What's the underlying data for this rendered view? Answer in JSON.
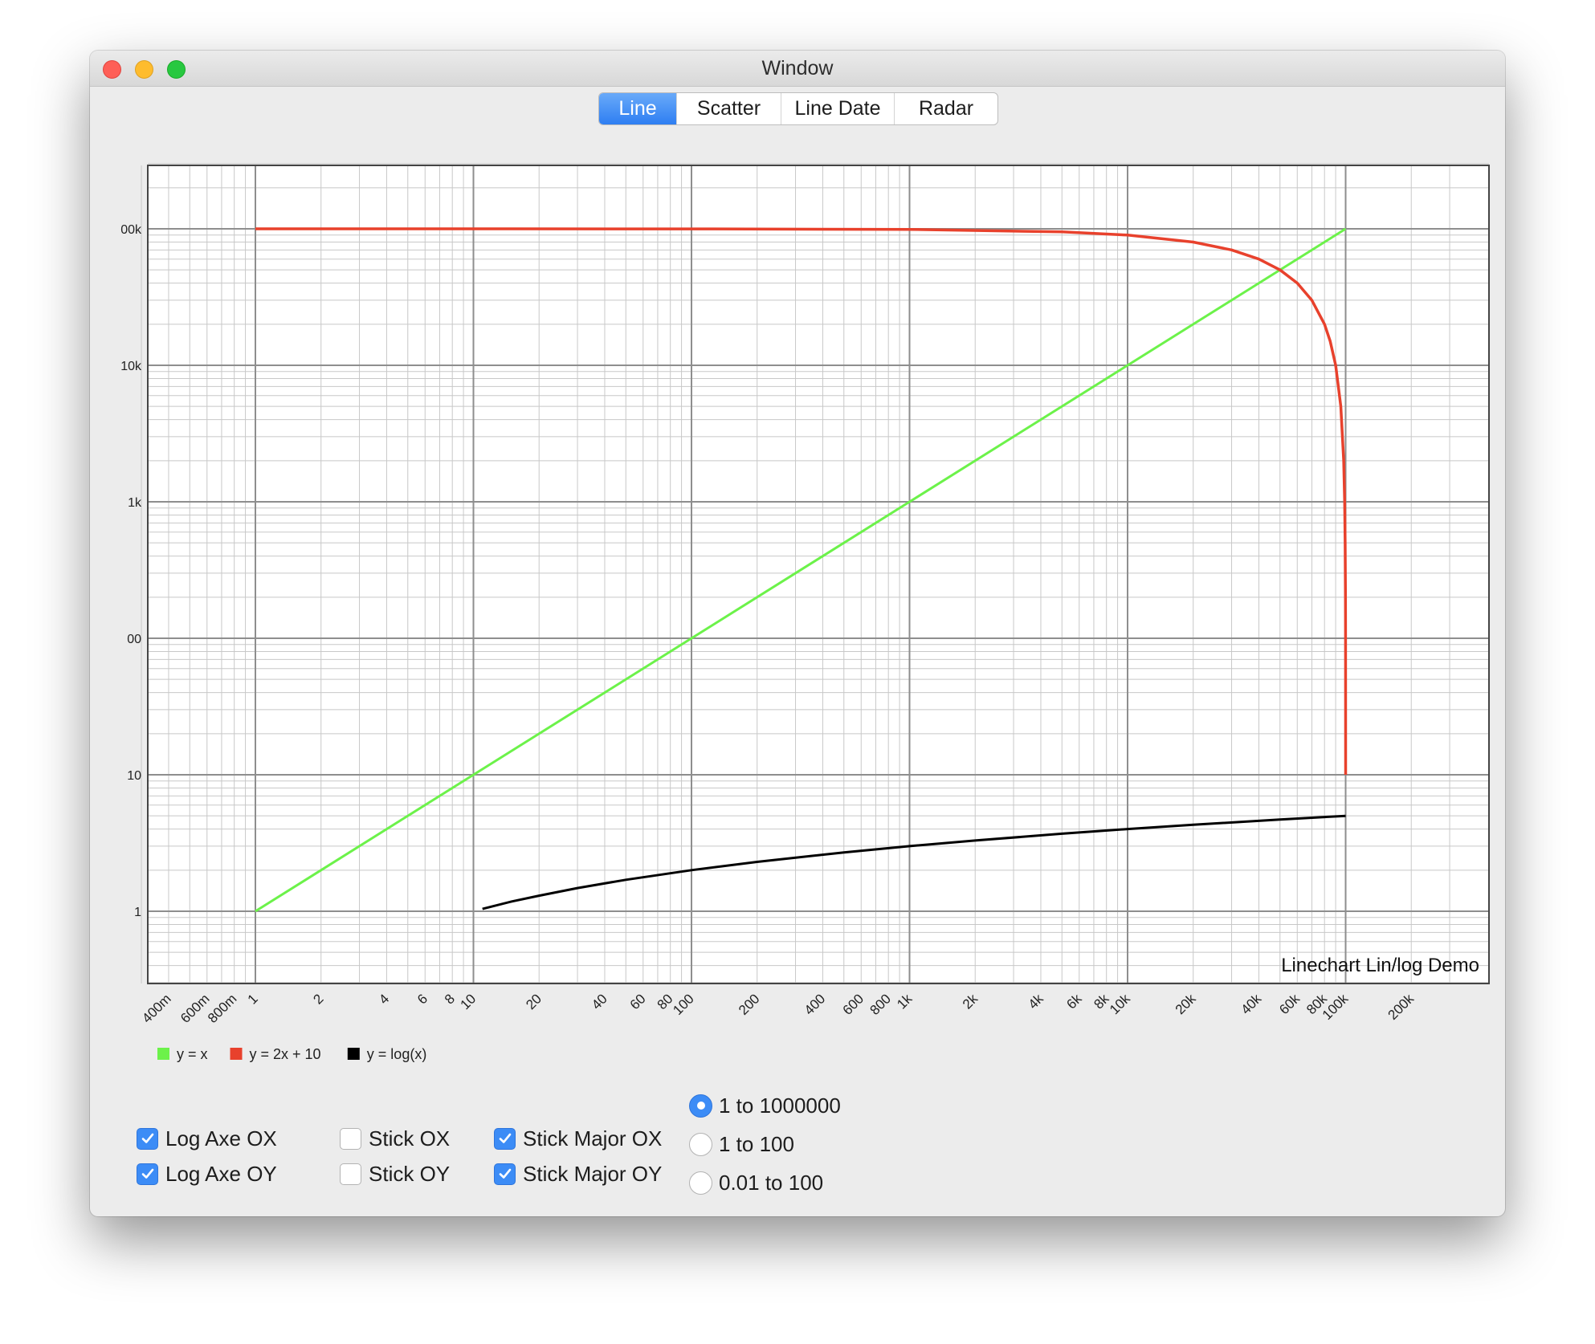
{
  "window": {
    "title": "Window"
  },
  "tabs": [
    {
      "label": "Line",
      "selected": true
    },
    {
      "label": "Scatter",
      "selected": false
    },
    {
      "label": "Line Date",
      "selected": false
    },
    {
      "label": "Radar",
      "selected": false
    }
  ],
  "chart_data": {
    "type": "line",
    "annotation": "Linechart Lin/log Demo",
    "x_scale": "log",
    "y_scale": "log",
    "xlim": [
      0.3,
      300000
    ],
    "ylim": [
      0.3,
      300000
    ],
    "grid": true,
    "legend_position": "bottom-left",
    "x_tick_labels": [
      "400m",
      "600m",
      "800m",
      "1",
      "2",
      "4",
      "6",
      "8",
      "10",
      "20",
      "40",
      "60",
      "80",
      "100",
      "200",
      "400",
      "600",
      "800",
      "1k",
      "2k",
      "4k",
      "6k",
      "8k",
      "10k",
      "20k",
      "40k",
      "60k",
      "80k",
      "100k",
      "200k"
    ],
    "y_tick_labels": [
      "1",
      "10",
      "00",
      "1k",
      "10k",
      "00k"
    ],
    "series": [
      {
        "name": "y = x",
        "color": "#6cf24a",
        "x": [
          1,
          10,
          100,
          1000,
          10000,
          100000
        ],
        "y": [
          1,
          10,
          100,
          1000,
          10000,
          100000
        ]
      },
      {
        "name": "y = 2x + 10",
        "color": "#e8412c",
        "x": [
          1,
          10,
          100,
          1000,
          5000,
          10000,
          20000,
          30000,
          40000,
          50000,
          60000,
          70000,
          80000,
          85000,
          90000,
          95000,
          98000,
          99000,
          99500,
          99800,
          99900,
          100000
        ],
        "y": [
          99999,
          99990,
          99900,
          99000,
          95000,
          90000,
          80000,
          70000,
          60000,
          50000,
          40000,
          30000,
          20000,
          15000,
          10000,
          5000,
          2000,
          1000,
          500,
          200,
          100,
          10
        ]
      },
      {
        "name": "y = log(x)",
        "color": "#000000",
        "x": [
          11,
          15,
          20,
          30,
          50,
          100,
          200,
          500,
          1000,
          2000,
          5000,
          10000,
          20000,
          50000,
          100000
        ],
        "y": [
          1.04,
          1.18,
          1.3,
          1.48,
          1.7,
          2.0,
          2.3,
          2.7,
          3.0,
          3.3,
          3.7,
          4.0,
          4.3,
          4.7,
          5.0
        ]
      }
    ]
  },
  "controls": {
    "log_axe_ox": {
      "label": "Log Axe OX",
      "checked": true
    },
    "log_axe_oy": {
      "label": "Log Axe OY",
      "checked": true
    },
    "stick_ox": {
      "label": "Stick OX",
      "checked": false
    },
    "stick_oy": {
      "label": "Stick OY",
      "checked": false
    },
    "stick_major_ox": {
      "label": "Stick Major OX",
      "checked": true
    },
    "stick_major_oy": {
      "label": "Stick Major OY",
      "checked": true
    },
    "ranges": [
      {
        "label": "1 to 1000000",
        "selected": true
      },
      {
        "label": "1 to 100",
        "selected": false
      },
      {
        "label": "0.01 to 100",
        "selected": false
      }
    ]
  }
}
